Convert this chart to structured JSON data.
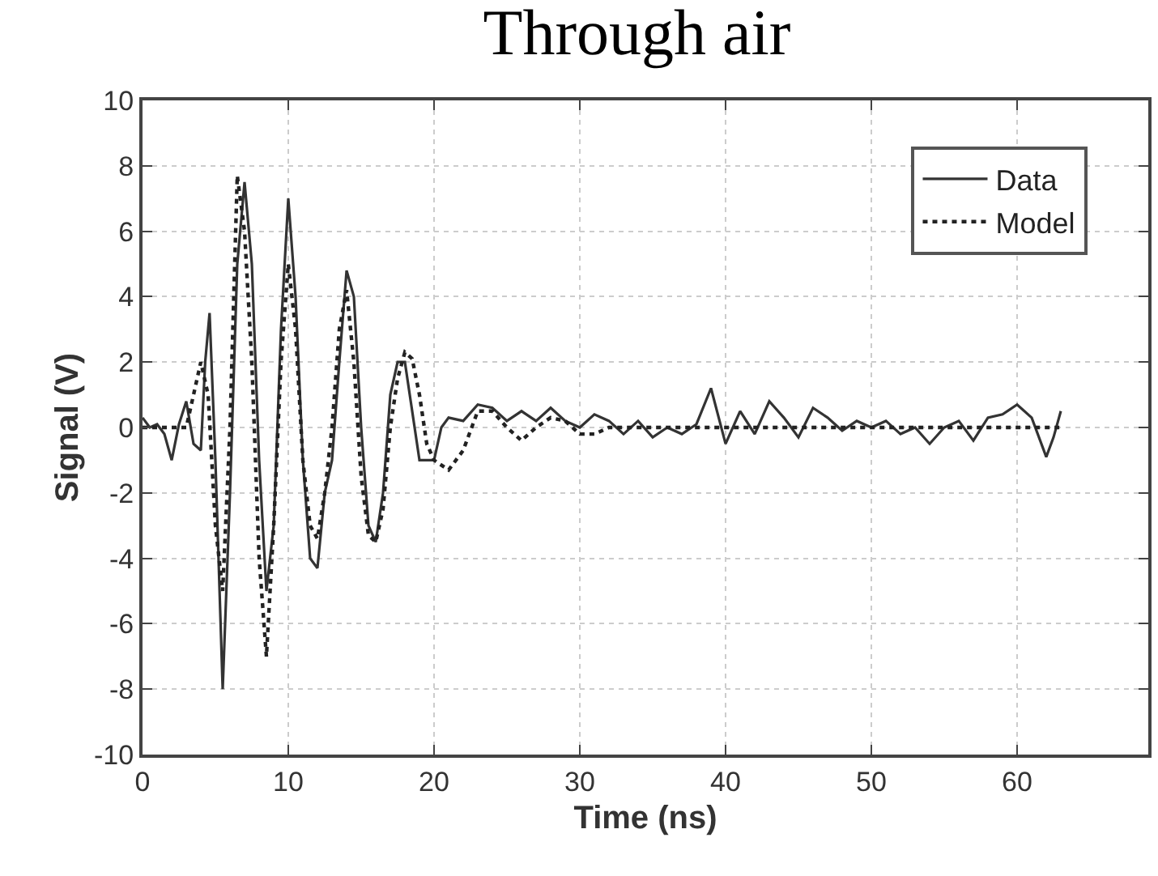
{
  "chart_data": {
    "type": "line",
    "title": "Through air",
    "xlabel": "Time (ns)",
    "ylabel": "Signal (V)",
    "xlim": [
      0,
      69
    ],
    "xticks": [
      0,
      10,
      20,
      30,
      40,
      50,
      60
    ],
    "ylim": [
      -10,
      10
    ],
    "yticks": [
      -10,
      -8,
      -6,
      -4,
      -2,
      0,
      2,
      4,
      6,
      8,
      10
    ],
    "grid": true,
    "legend": "top right",
    "series": [
      {
        "name": "Data",
        "color": "#333333",
        "line_style": "solid",
        "x": [
          0,
          0.5,
          1,
          1.5,
          2,
          2.5,
          3,
          3.5,
          4,
          4.3,
          4.6,
          5,
          5.5,
          6,
          6.5,
          7,
          7.5,
          8,
          8.5,
          9,
          9.5,
          10,
          10.5,
          11,
          11.5,
          12,
          12.5,
          13,
          13.5,
          14,
          14.5,
          15,
          15.5,
          16,
          16.5,
          17,
          17.5,
          18,
          18.5,
          19,
          20,
          20.5,
          21,
          22,
          23,
          24,
          25,
          26,
          27,
          28,
          29,
          30,
          31,
          32,
          33,
          34,
          35,
          36,
          37,
          38,
          39,
          40,
          41,
          42,
          43,
          44,
          45,
          46,
          47,
          48,
          49,
          50,
          51,
          52,
          53,
          54,
          55,
          56,
          57,
          58,
          59,
          60,
          61,
          62,
          62.5,
          63
        ],
        "values": [
          0.3,
          0,
          0.1,
          -0.2,
          -1,
          0.1,
          0.8,
          -0.5,
          -0.7,
          2,
          3.5,
          -1,
          -8,
          -2,
          5,
          7.5,
          5,
          -1,
          -5,
          -3,
          3,
          7,
          4,
          -1,
          -4,
          -4.3,
          -2,
          -1,
          2,
          4.8,
          4,
          0,
          -3,
          -3.5,
          -2,
          1,
          2,
          2,
          0.5,
          -1,
          -1,
          0,
          0.3,
          0.2,
          0.7,
          0.6,
          0.2,
          0.5,
          0.2,
          0.6,
          0.2,
          0,
          0.4,
          0.2,
          -0.2,
          0.2,
          -0.3,
          0,
          -0.2,
          0.1,
          1.2,
          -0.5,
          0.5,
          -0.2,
          0.8,
          0.3,
          -0.3,
          0.6,
          0.3,
          -0.1,
          0.2,
          0,
          0.2,
          -0.2,
          0,
          -0.5,
          0,
          0.2,
          -0.4,
          0.3,
          0.4,
          0.7,
          0.3,
          -0.9,
          -0.3,
          0.5
        ]
      },
      {
        "name": "Model",
        "color": "#222222",
        "line_style": "dotted",
        "x": [
          0,
          2,
          3,
          3.5,
          4,
          4.5,
          5,
          5.5,
          6,
          6.5,
          7,
          7.5,
          8,
          8.5,
          9,
          9.5,
          10,
          10.5,
          11,
          11.5,
          12,
          12.5,
          13,
          13.5,
          14,
          14.5,
          15,
          15.5,
          16,
          16.5,
          17,
          17.5,
          18,
          18.5,
          19,
          19.5,
          20,
          21,
          22,
          23,
          24,
          25,
          26,
          27,
          28,
          29,
          30,
          31,
          32,
          35,
          40,
          50,
          63
        ],
        "values": [
          0,
          0,
          0,
          1,
          2,
          1,
          -3,
          -5,
          0,
          7.7,
          6,
          2,
          -4,
          -7,
          -3,
          2,
          5,
          3,
          -1,
          -3,
          -3.4,
          -2,
          0,
          3,
          4.2,
          2,
          -1.5,
          -3.3,
          -3.5,
          -2.5,
          0,
          1.5,
          2.3,
          2.1,
          1,
          -0.5,
          -1,
          -1.3,
          -0.7,
          0.5,
          0.5,
          0,
          -0.4,
          0,
          0.3,
          0.2,
          -0.2,
          -0.2,
          0,
          0,
          0,
          0,
          0
        ]
      }
    ]
  }
}
